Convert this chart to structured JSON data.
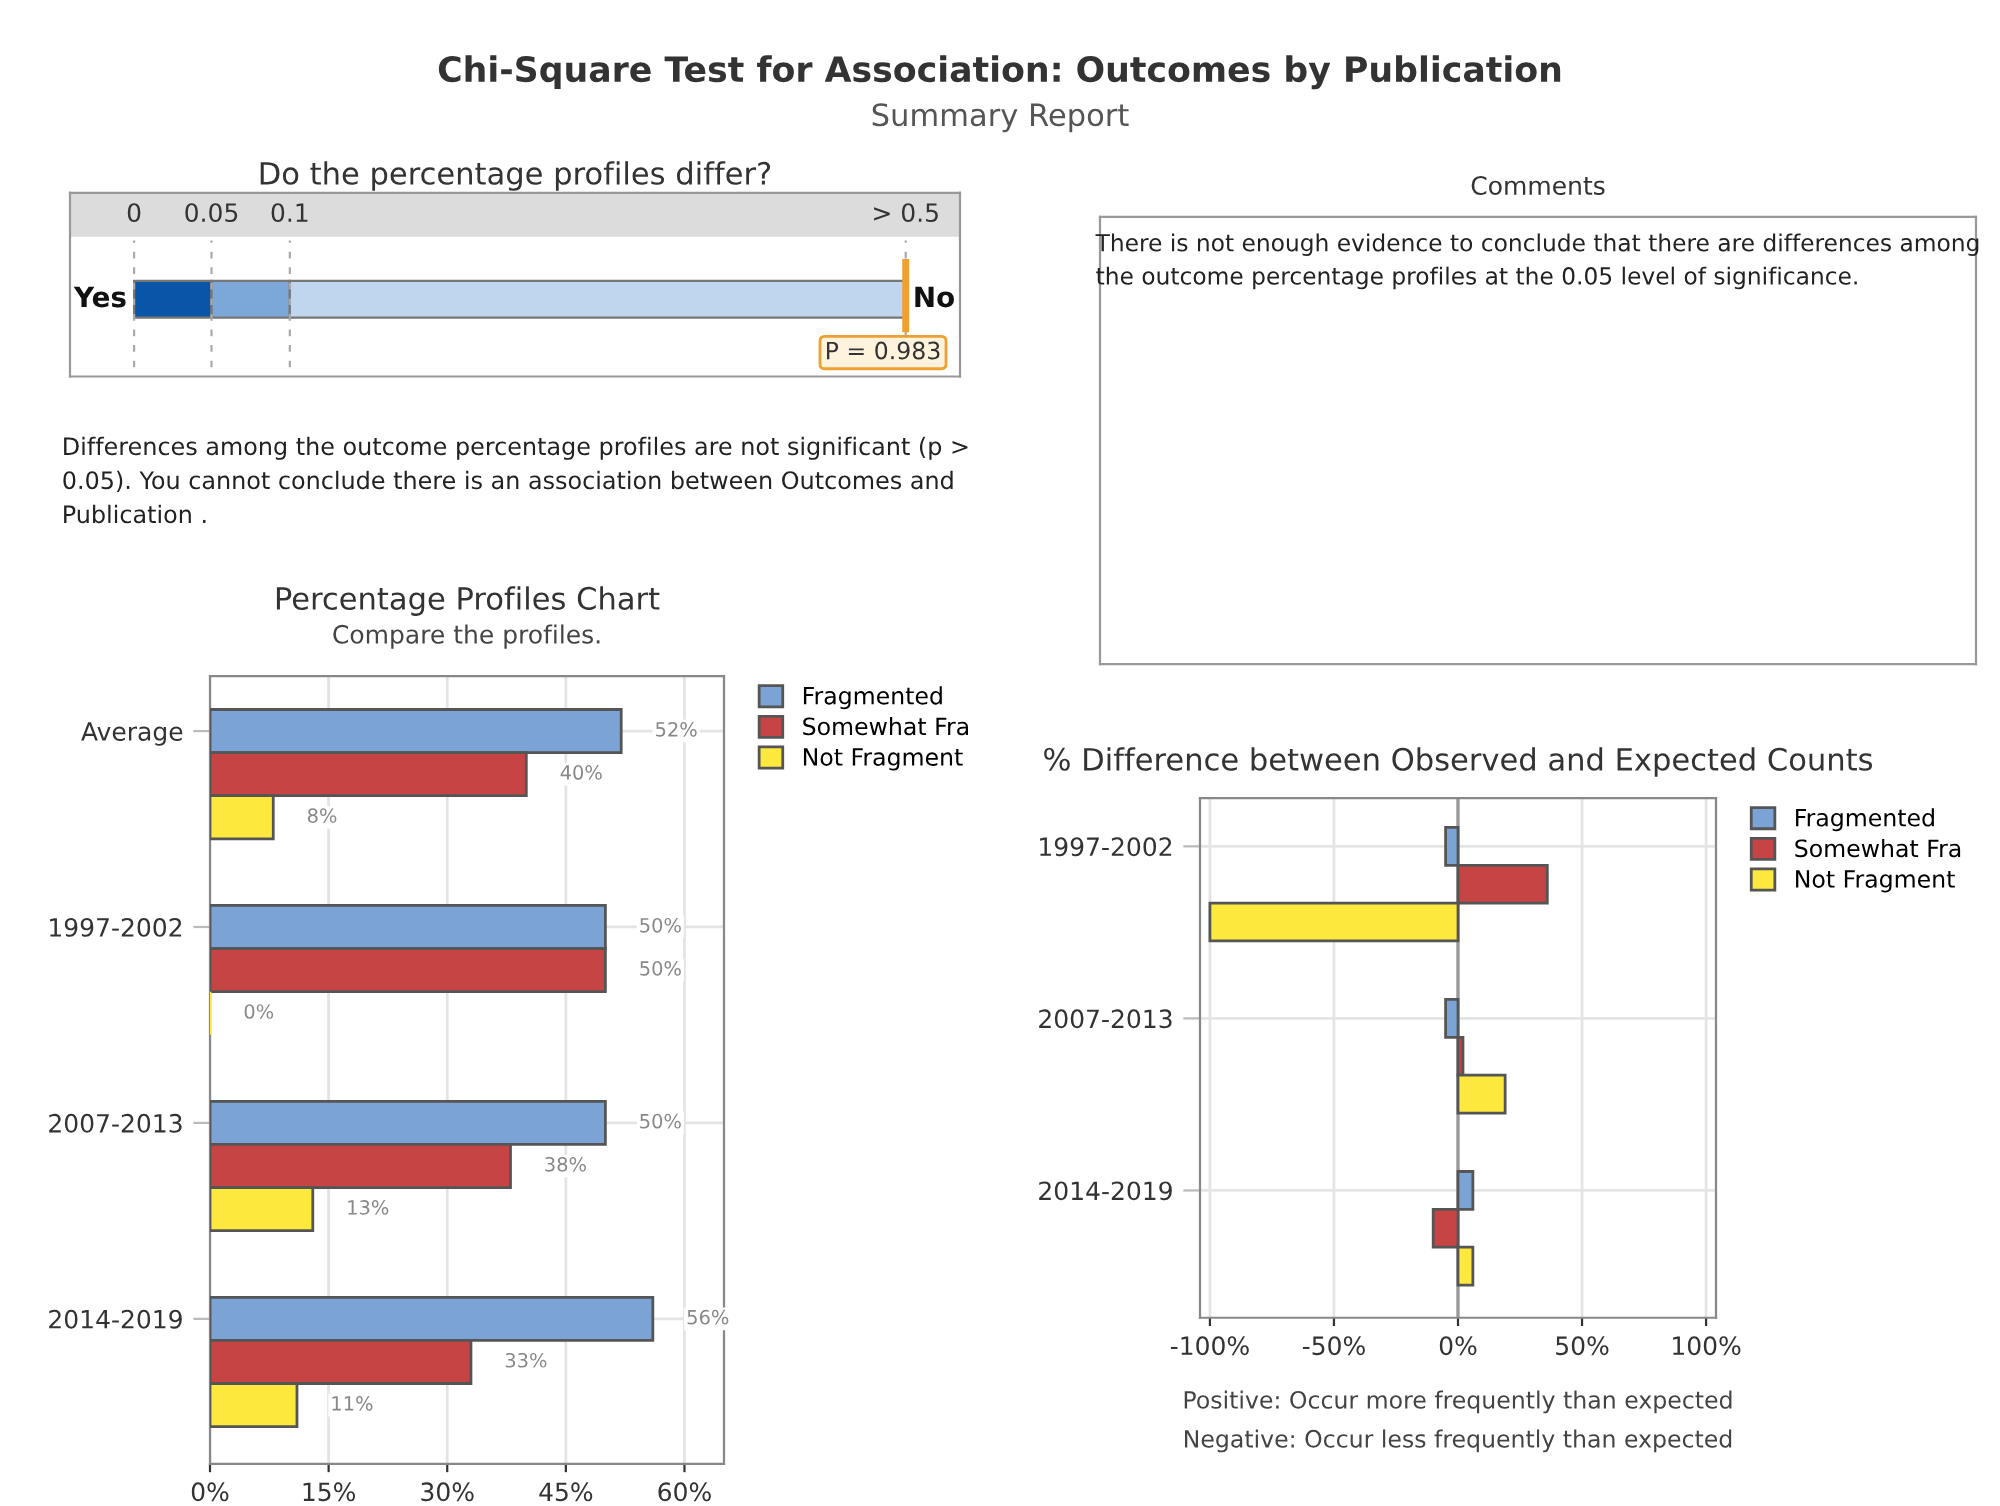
{
  "chart_data": [
    {
      "type": "other",
      "title": "Chi-Square Test for Association: Outcomes by Publication",
      "subtitle": "Summary Report"
    },
    {
      "type": "other",
      "title": "Do the percentage profiles differ?",
      "categories": [
        "0",
        "0.05",
        "0.1",
        "> 0.5"
      ],
      "annotations": [
        "Yes",
        "No",
        "P = 0.983",
        "Differences among the outcome percentage profiles are not significant (p > 0.05). You cannot conclude there is an association between Outcomes and Publication ."
      ]
    },
    {
      "type": "other",
      "title": "Comments",
      "annotations": [
        "There is not enough evidence to conclude that there are differences among the outcome percentage profiles at the 0.05 level of significance."
      ]
    },
    {
      "type": "bar",
      "orientation": "horizontal",
      "title": "Percentage Profiles Chart",
      "subtitle": "Compare the profiles.",
      "categories": [
        "Average",
        "1997-2002",
        "2007-2013",
        "2014-2019"
      ],
      "xlim": [
        0,
        65
      ],
      "xticks": [
        {
          "value": 0,
          "label": "0%"
        },
        {
          "value": 15,
          "label": "15%"
        },
        {
          "value": 30,
          "label": "30%"
        },
        {
          "value": 45,
          "label": "45%"
        },
        {
          "value": 60,
          "label": "60%"
        }
      ],
      "grid": true,
      "legend": "top right",
      "series": [
        {
          "name": "Fragmented",
          "color": "#7ba3d6",
          "values": [
            52,
            50,
            50,
            56
          ],
          "value_labels": [
            "52%",
            "50%",
            "50%",
            "56%"
          ]
        },
        {
          "name": "Somewhat Fra",
          "color": "#c64444",
          "values": [
            40,
            50,
            38,
            33
          ],
          "value_labels": [
            "40%",
            "50%",
            "38%",
            "33%"
          ]
        },
        {
          "name": "Not Fragment",
          "color": "#fde93e",
          "values": [
            8,
            0,
            13,
            11
          ],
          "value_labels": [
            "8%",
            "0%",
            "13%",
            "11%"
          ]
        }
      ]
    },
    {
      "type": "bar",
      "orientation": "horizontal",
      "title": "% Difference between Observed and Expected Counts",
      "categories": [
        "1997-2002",
        "2007-2013",
        "2014-2019"
      ],
      "xlim": [
        -104,
        104
      ],
      "xticks": [
        {
          "value": -100,
          "label": "-100%"
        },
        {
          "value": -50,
          "label": "-50%"
        },
        {
          "value": 0,
          "label": "0%"
        },
        {
          "value": 50,
          "label": "50%"
        },
        {
          "value": 100,
          "label": "100%"
        }
      ],
      "grid": true,
      "legend": "top right",
      "ref_lines": [
        {
          "axis": "x",
          "value": 0,
          "color": "#9a9a9a"
        }
      ],
      "series": [
        {
          "name": "Fragmented",
          "color": "#7ba3d6",
          "values": [
            -5,
            -5,
            6
          ]
        },
        {
          "name": "Somewhat Fra",
          "color": "#c64444",
          "values": [
            36,
            2,
            -10
          ]
        },
        {
          "name": "Not Fragment",
          "color": "#fde93e",
          "values": [
            -100,
            19,
            6
          ]
        }
      ],
      "annotations": [
        "Positive: Occur more frequently than expected",
        "Negative: Occur less frequently than expected"
      ]
    }
  ]
}
